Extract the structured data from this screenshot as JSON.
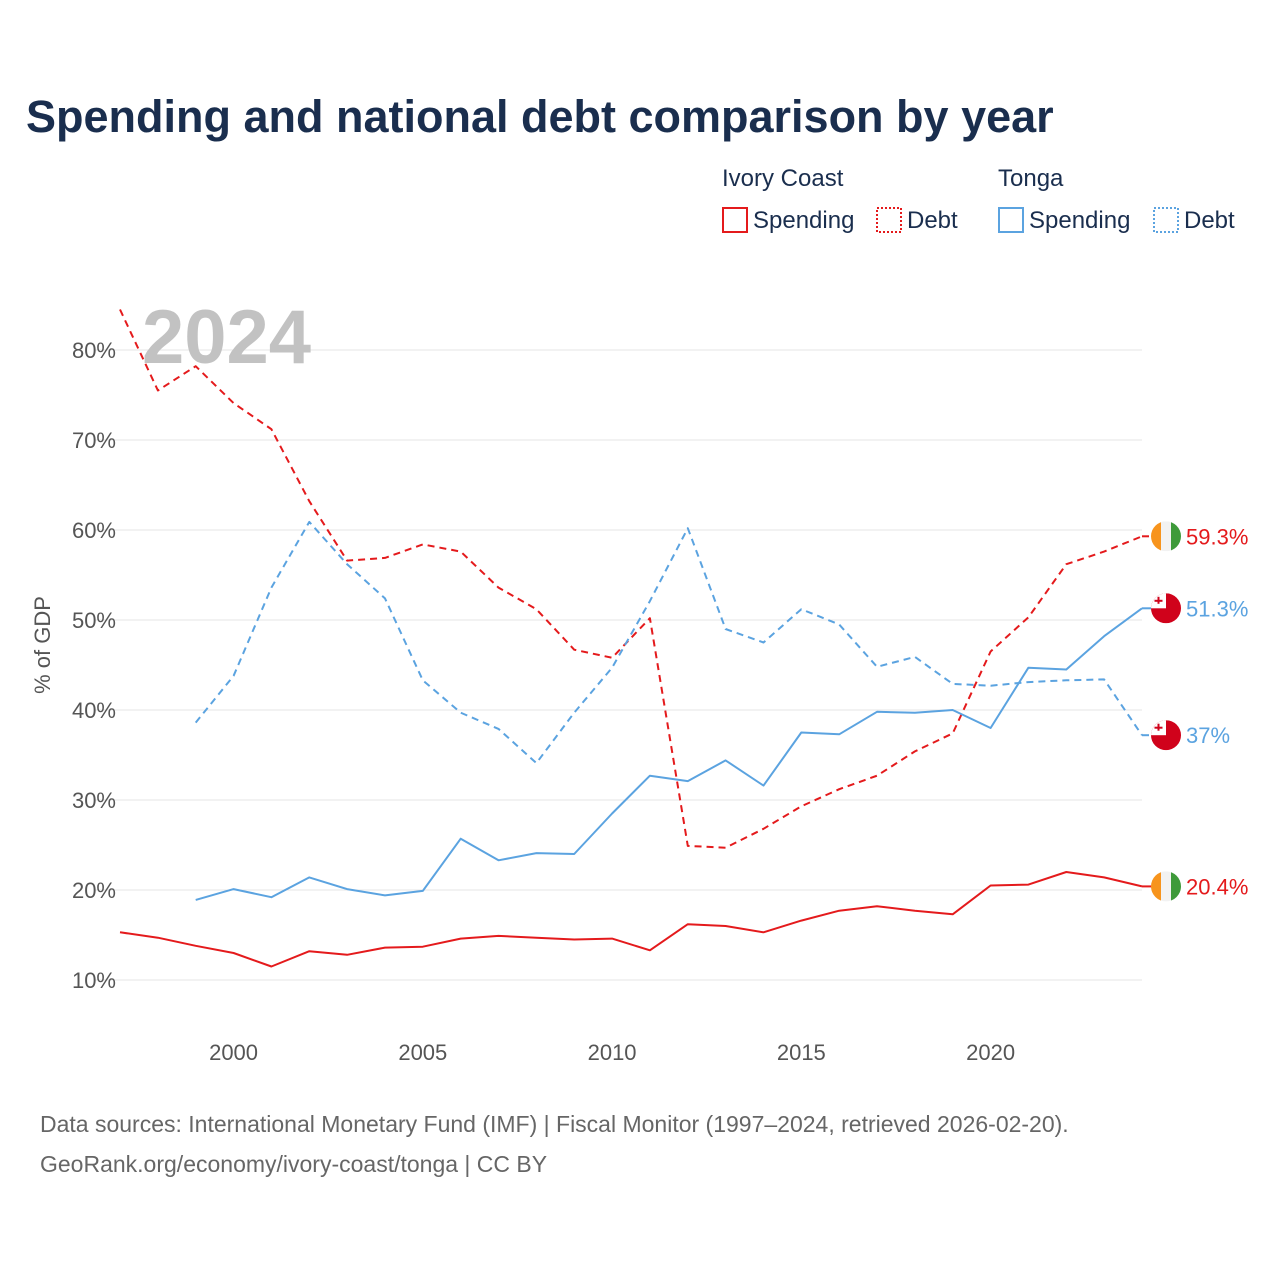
{
  "chart_data": {
    "type": "line",
    "title": "Spending and national debt comparison by year",
    "watermark_year": "2024",
    "ylabel": "% of GDP",
    "xlabel": "",
    "xlim": [
      1997,
      2024
    ],
    "ylim": [
      6,
      90
    ],
    "y_ticks": [
      10,
      20,
      30,
      40,
      50,
      60,
      70,
      80
    ],
    "y_tick_labels": [
      "10%",
      "20%",
      "30%",
      "40%",
      "50%",
      "60%",
      "70%",
      "80%"
    ],
    "x_ticks": [
      2000,
      2005,
      2010,
      2015,
      2020
    ],
    "x_tick_labels": [
      "2000",
      "2005",
      "2010",
      "2015",
      "2020"
    ],
    "legend": {
      "groups": [
        {
          "country": "Ivory Coast",
          "color": "#e41a1c",
          "items": [
            {
              "label": "Spending",
              "style": "solid"
            },
            {
              "label": "Debt",
              "style": "dotted"
            }
          ]
        },
        {
          "country": "Tonga",
          "color": "#5ba3e0",
          "items": [
            {
              "label": "Spending",
              "style": "solid"
            },
            {
              "label": "Debt",
              "style": "dotted"
            }
          ]
        }
      ]
    },
    "series": [
      {
        "name": "Ivory Coast Debt",
        "country": "Ivory Coast",
        "metric": "Debt",
        "color": "#e41a1c",
        "dash": true,
        "flag": "ivory-coast",
        "end_label": "59.3%",
        "x": [
          1997,
          1998,
          1999,
          2000,
          2001,
          2002,
          2003,
          2004,
          2005,
          2006,
          2007,
          2008,
          2009,
          2010,
          2011,
          2012,
          2013,
          2014,
          2015,
          2016,
          2017,
          2018,
          2019,
          2020,
          2021,
          2022,
          2023,
          2024
        ],
        "values": [
          84.5,
          75.5,
          78.2,
          74.1,
          71.2,
          63.2,
          56.6,
          56.9,
          58.4,
          57.6,
          53.6,
          51.2,
          46.7,
          45.8,
          50.2,
          24.9,
          24.7,
          26.8,
          29.3,
          31.2,
          32.7,
          35.4,
          37.4,
          46.5,
          50.3,
          56.2,
          57.6,
          59.3
        ]
      },
      {
        "name": "Ivory Coast Spending",
        "country": "Ivory Coast",
        "metric": "Spending",
        "color": "#e41a1c",
        "dash": false,
        "flag": "ivory-coast",
        "end_label": "20.4%",
        "x": [
          1997,
          1998,
          1999,
          2000,
          2001,
          2002,
          2003,
          2004,
          2005,
          2006,
          2007,
          2008,
          2009,
          2010,
          2011,
          2012,
          2013,
          2014,
          2015,
          2016,
          2017,
          2018,
          2019,
          2020,
          2021,
          2022,
          2023,
          2024
        ],
        "values": [
          15.3,
          14.7,
          13.8,
          13.0,
          11.5,
          13.2,
          12.8,
          13.6,
          13.7,
          14.6,
          14.9,
          14.7,
          14.5,
          14.6,
          13.3,
          16.2,
          16.0,
          15.3,
          16.6,
          17.7,
          18.2,
          17.7,
          17.3,
          20.5,
          20.6,
          22.0,
          21.4,
          20.4
        ]
      },
      {
        "name": "Tonga Debt",
        "country": "Tonga",
        "metric": "Debt",
        "color": "#5ba3e0",
        "dash": true,
        "flag": "tonga",
        "end_label": "37%",
        "x": [
          1999,
          2000,
          2001,
          2002,
          2003,
          2004,
          2005,
          2006,
          2007,
          2008,
          2009,
          2010,
          2011,
          2012,
          2013,
          2014,
          2015,
          2016,
          2017,
          2018,
          2019,
          2020,
          2021,
          2022,
          2023,
          2024
        ],
        "values": [
          38.6,
          43.8,
          53.6,
          60.9,
          56.2,
          52.4,
          43.3,
          39.7,
          37.9,
          34.1,
          39.7,
          44.7,
          52.1,
          60.2,
          49.0,
          47.5,
          51.2,
          49.5,
          44.8,
          45.9,
          42.9,
          42.7,
          43.1,
          43.3,
          43.4,
          37.2
        ]
      },
      {
        "name": "Tonga Spending",
        "country": "Tonga",
        "metric": "Spending",
        "color": "#5ba3e0",
        "dash": false,
        "flag": "tonga",
        "end_label": "51.3%",
        "x": [
          1999,
          2000,
          2001,
          2002,
          2003,
          2004,
          2005,
          2006,
          2007,
          2008,
          2009,
          2010,
          2011,
          2012,
          2013,
          2014,
          2015,
          2016,
          2017,
          2018,
          2019,
          2020,
          2021,
          2022,
          2023,
          2024
        ],
        "values": [
          18.9,
          20.1,
          19.2,
          21.4,
          20.1,
          19.4,
          19.9,
          25.7,
          23.3,
          24.1,
          24.0,
          28.5,
          32.7,
          32.1,
          34.4,
          31.6,
          37.5,
          37.3,
          39.8,
          39.7,
          40.0,
          38.0,
          44.7,
          44.5,
          48.2,
          51.3
        ]
      }
    ]
  },
  "footer": {
    "source_line": "Data sources: International Monetary Fund (IMF) | Fiscal Monitor (1997–2024, retrieved 2026-02-20).",
    "credit_line": "GeoRank.org/economy/ivory-coast/tonga | CC BY"
  }
}
